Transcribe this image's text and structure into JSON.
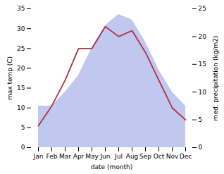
{
  "chart_data": {
    "type": "line",
    "xlabel": "date (month)",
    "ylabel": "max temp (C)",
    "y2label": "med. precipitation (kg/m2)",
    "categories": [
      "Jan",
      "Feb",
      "Mar",
      "Apr",
      "May",
      "Jun",
      "Jul",
      "Aug",
      "Sep",
      "Oct",
      "Nov",
      "Dec"
    ],
    "series": [
      {
        "type": "area",
        "axis": "y2",
        "color": "#c0c8f0",
        "values": [
          7.5,
          7.5,
          10.0,
          13.0,
          18.0,
          22.0,
          24.0,
          23.0,
          19.0,
          14.0,
          10.0,
          7.5
        ]
      },
      {
        "type": "line",
        "axis": "y",
        "color": "#b03040",
        "values": [
          5.5,
          10.5,
          17.0,
          25.0,
          25.0,
          30.5,
          28.0,
          29.5,
          24.0,
          17.0,
          10.0,
          7.0
        ]
      }
    ],
    "ylim": [
      0,
      35
    ],
    "yticks": [
      0,
      5,
      10,
      15,
      20,
      25,
      30,
      35
    ],
    "y2lim": [
      0,
      25
    ],
    "y2ticks": [
      0,
      5,
      10,
      15,
      20,
      25
    ]
  }
}
